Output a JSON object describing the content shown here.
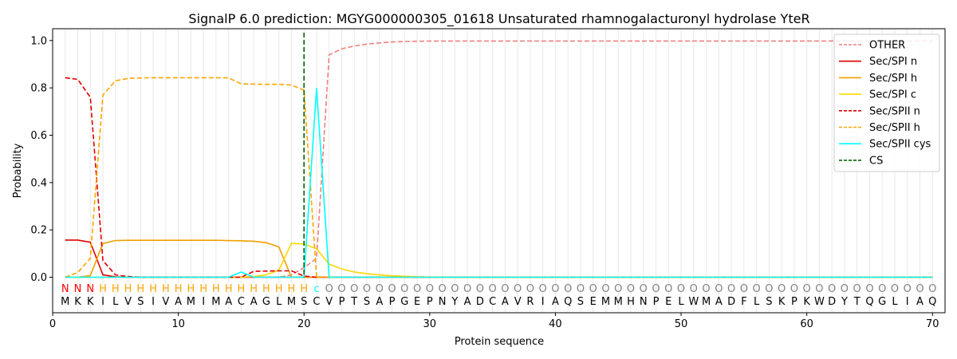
{
  "chart_data": {
    "type": "line",
    "title": "SignalP 6.0 prediction: MGYG000000305_01618 Unsaturated rhamnogalacturonyl hydrolase YteR",
    "xlabel": "Protein sequence",
    "ylabel": "Probability",
    "xlim": [
      0,
      71
    ],
    "ylim": [
      -0.15,
      1.05
    ],
    "xticks": [
      0,
      10,
      20,
      30,
      40,
      50,
      60,
      70
    ],
    "yticks": [
      0.0,
      0.2,
      0.4,
      0.6,
      0.8,
      1.0
    ],
    "xtick_labels": [
      "0",
      "10",
      "20",
      "30",
      "40",
      "50",
      "60",
      "70"
    ],
    "ytick_labels": [
      "0.0",
      "0.2",
      "0.4",
      "0.6",
      "0.8",
      "1.0"
    ],
    "legend_position": "top-right",
    "sequence": "MKKILVSIVAMIMACAGLMSCVPTSAPGEPNYADCAVRIAQSEMMHNPELWMADFLSKPKWDYTQGLIAQ",
    "region_labels": "NNNHHHHHHHHHHHHHHHHHcOOOOOOOOOOOOOOOOOOOOOOOOOOOOOOOOOOOOOOOOOOOOOOOOO",
    "region_colors": {
      "N": "#ff0000",
      "H": "#ffa500",
      "c": "#00ffff",
      "O": "#808080"
    },
    "cleavage_site": 20,
    "series": [
      {
        "name": "OTHER",
        "color": "#f08080",
        "dash": "dashed",
        "values": [
          0.0,
          0.0,
          0.0,
          0.0,
          0.0,
          0.0,
          0.0,
          0.0,
          0.0,
          0.0,
          0.0,
          0.0,
          0.0,
          0.0,
          0.0,
          0.0,
          0.0,
          0.0,
          0.01,
          0.04,
          0.08,
          0.94,
          0.965,
          0.977,
          0.985,
          0.99,
          0.994,
          0.996,
          0.997,
          0.998,
          0.998,
          0.998,
          0.998,
          0.998,
          0.998,
          0.998,
          0.998,
          0.998,
          0.998,
          0.998,
          0.998,
          0.998,
          0.998,
          0.998,
          0.998,
          0.998,
          0.998,
          0.998,
          0.998,
          0.998,
          0.998,
          0.998,
          0.998,
          0.998,
          0.998,
          0.998,
          0.998,
          0.998,
          0.998,
          0.998,
          0.998,
          0.998,
          0.998,
          0.998,
          0.998,
          0.998,
          0.998,
          0.998,
          0.998,
          0.998
        ]
      },
      {
        "name": "Sec/SPI n",
        "color": "#e00000",
        "dash": "solid",
        "values": [
          0.157,
          0.157,
          0.148,
          0.01,
          0.002,
          0.0,
          0.0,
          0.0,
          0.0,
          0.0,
          0.0,
          0.0,
          0.0,
          0.0,
          0.0,
          0.0,
          0.0,
          0.0,
          0.0,
          0.0,
          0.0,
          0.0,
          0.0,
          0.0,
          0.0,
          0.0,
          0.0,
          0.0,
          0.0,
          0.0,
          0.0,
          0.0,
          0.0,
          0.0,
          0.0,
          0.0,
          0.0,
          0.0,
          0.0,
          0.0,
          0.0,
          0.0,
          0.0,
          0.0,
          0.0,
          0.0,
          0.0,
          0.0,
          0.0,
          0.0,
          0.0,
          0.0,
          0.0,
          0.0,
          0.0,
          0.0,
          0.0,
          0.0,
          0.0,
          0.0,
          0.0,
          0.0,
          0.0,
          0.0,
          0.0,
          0.0,
          0.0,
          0.0,
          0.0,
          0.0
        ]
      },
      {
        "name": "Sec/SPI h",
        "color": "#f0a000",
        "dash": "solid",
        "values": [
          0.0,
          0.0,
          0.007,
          0.143,
          0.155,
          0.156,
          0.156,
          0.156,
          0.156,
          0.156,
          0.156,
          0.156,
          0.156,
          0.155,
          0.154,
          0.152,
          0.146,
          0.128,
          0.0,
          0.0,
          0.0,
          0.0,
          0.0,
          0.0,
          0.0,
          0.0,
          0.0,
          0.0,
          0.0,
          0.0,
          0.0,
          0.0,
          0.0,
          0.0,
          0.0,
          0.0,
          0.0,
          0.0,
          0.0,
          0.0,
          0.0,
          0.0,
          0.0,
          0.0,
          0.0,
          0.0,
          0.0,
          0.0,
          0.0,
          0.0,
          0.0,
          0.0,
          0.0,
          0.0,
          0.0,
          0.0,
          0.0,
          0.0,
          0.0,
          0.0,
          0.0,
          0.0,
          0.0,
          0.0,
          0.0,
          0.0,
          0.0,
          0.0,
          0.0,
          0.0
        ]
      },
      {
        "name": "Sec/SPI c",
        "color": "#ffd700",
        "dash": "solid",
        "values": [
          0.0,
          0.0,
          0.0,
          0.0,
          0.0,
          0.0,
          0.0,
          0.0,
          0.0,
          0.0,
          0.0,
          0.0,
          0.0,
          0.0,
          0.0,
          0.003,
          0.01,
          0.03,
          0.143,
          0.14,
          0.12,
          0.055,
          0.035,
          0.022,
          0.015,
          0.01,
          0.006,
          0.004,
          0.002,
          0.001,
          0.0,
          0.0,
          0.0,
          0.0,
          0.0,
          0.0,
          0.0,
          0.0,
          0.0,
          0.0,
          0.0,
          0.0,
          0.0,
          0.0,
          0.0,
          0.0,
          0.0,
          0.0,
          0.0,
          0.0,
          0.0,
          0.0,
          0.0,
          0.0,
          0.0,
          0.0,
          0.0,
          0.0,
          0.0,
          0.0,
          0.0,
          0.0,
          0.0,
          0.0,
          0.0,
          0.0,
          0.0,
          0.0,
          0.0,
          0.0
        ]
      },
      {
        "name": "Sec/SPII n",
        "color": "#e00000",
        "dash": "dashed",
        "values": [
          0.843,
          0.836,
          0.76,
          0.07,
          0.01,
          0.003,
          0.0,
          0.0,
          0.0,
          0.0,
          0.0,
          0.0,
          0.0,
          0.0,
          0.0,
          0.025,
          0.026,
          0.027,
          0.027,
          0.005,
          0.0,
          0.0,
          0.0,
          0.0,
          0.0,
          0.0,
          0.0,
          0.0,
          0.0,
          0.0,
          0.0,
          0.0,
          0.0,
          0.0,
          0.0,
          0.0,
          0.0,
          0.0,
          0.0,
          0.0,
          0.0,
          0.0,
          0.0,
          0.0,
          0.0,
          0.0,
          0.0,
          0.0,
          0.0,
          0.0,
          0.0,
          0.0,
          0.0,
          0.0,
          0.0,
          0.0,
          0.0,
          0.0,
          0.0,
          0.0,
          0.0,
          0.0,
          0.0,
          0.0,
          0.0,
          0.0,
          0.0,
          0.0,
          0.0,
          0.0
        ]
      },
      {
        "name": "Sec/SPII h",
        "color": "#ffa500",
        "dash": "dashed",
        "values": [
          0.0,
          0.02,
          0.08,
          0.77,
          0.83,
          0.84,
          0.842,
          0.843,
          0.843,
          0.843,
          0.843,
          0.843,
          0.843,
          0.842,
          0.817,
          0.816,
          0.815,
          0.815,
          0.812,
          0.79,
          0.0,
          0.0,
          0.0,
          0.0,
          0.0,
          0.0,
          0.0,
          0.0,
          0.0,
          0.0,
          0.0,
          0.0,
          0.0,
          0.0,
          0.0,
          0.0,
          0.0,
          0.0,
          0.0,
          0.0,
          0.0,
          0.0,
          0.0,
          0.0,
          0.0,
          0.0,
          0.0,
          0.0,
          0.0,
          0.0,
          0.0,
          0.0,
          0.0,
          0.0,
          0.0,
          0.0,
          0.0,
          0.0,
          0.0,
          0.0,
          0.0,
          0.0,
          0.0,
          0.0,
          0.0,
          0.0,
          0.0,
          0.0,
          0.0,
          0.0
        ]
      },
      {
        "name": "Sec/SPII cys",
        "color": "#00ffff",
        "dash": "solid",
        "values": [
          0.0,
          0.0,
          0.0,
          0.0,
          0.0,
          0.0,
          0.0,
          0.0,
          0.0,
          0.0,
          0.0,
          0.0,
          0.0,
          0.0,
          0.022,
          0.0,
          0.0,
          0.0,
          0.0,
          0.0,
          0.8,
          0.0,
          0.0,
          0.0,
          0.0,
          0.0,
          0.0,
          0.0,
          0.0,
          0.0,
          0.0,
          0.0,
          0.0,
          0.0,
          0.0,
          0.0,
          0.0,
          0.0,
          0.0,
          0.0,
          0.0,
          0.0,
          0.0,
          0.0,
          0.0,
          0.0,
          0.0,
          0.0,
          0.0,
          0.0,
          0.0,
          0.0,
          0.0,
          0.0,
          0.0,
          0.0,
          0.0,
          0.0,
          0.0,
          0.0,
          0.0,
          0.0,
          0.0,
          0.0,
          0.0,
          0.0,
          0.0,
          0.0,
          0.0,
          0.0
        ]
      },
      {
        "name": "CS",
        "color": "#006400",
        "dash": "dashed",
        "values": []
      }
    ]
  }
}
